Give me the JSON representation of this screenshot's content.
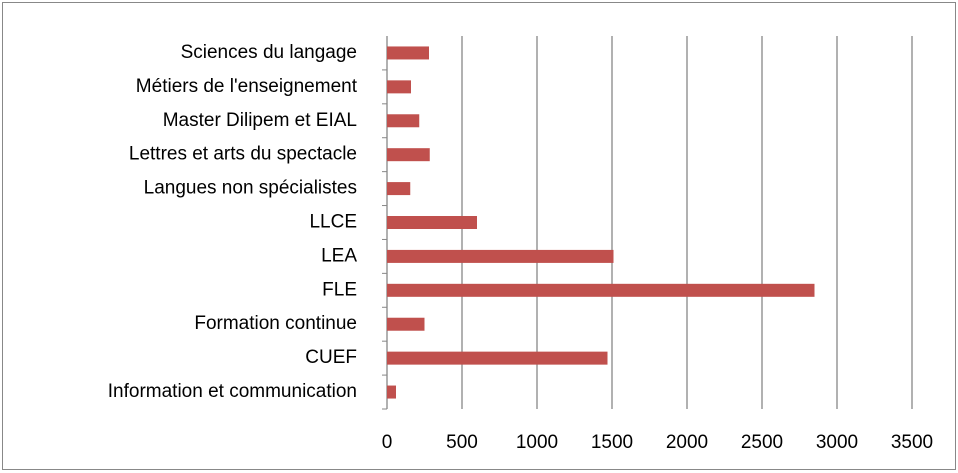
{
  "chart_data": {
    "type": "bar",
    "orientation": "horizontal",
    "categories": [
      "Information et communication",
      "CUEF",
      "Formation continue",
      "FLE",
      "LEA",
      "LLCE",
      "Langues non spécialistes",
      "Lettres et arts du spectacle",
      "Master Dilipem et EIAL",
      "Métiers de l'enseignement",
      "Sciences du langage"
    ],
    "values": [
      60,
      1470,
      250,
      2850,
      1510,
      600,
      155,
      285,
      215,
      160,
      280
    ],
    "color": "#c0504d",
    "xlim": [
      0,
      3500
    ],
    "xticks": [
      0,
      500,
      1000,
      1500,
      2000,
      2500,
      3000,
      3500
    ],
    "grid": true
  }
}
